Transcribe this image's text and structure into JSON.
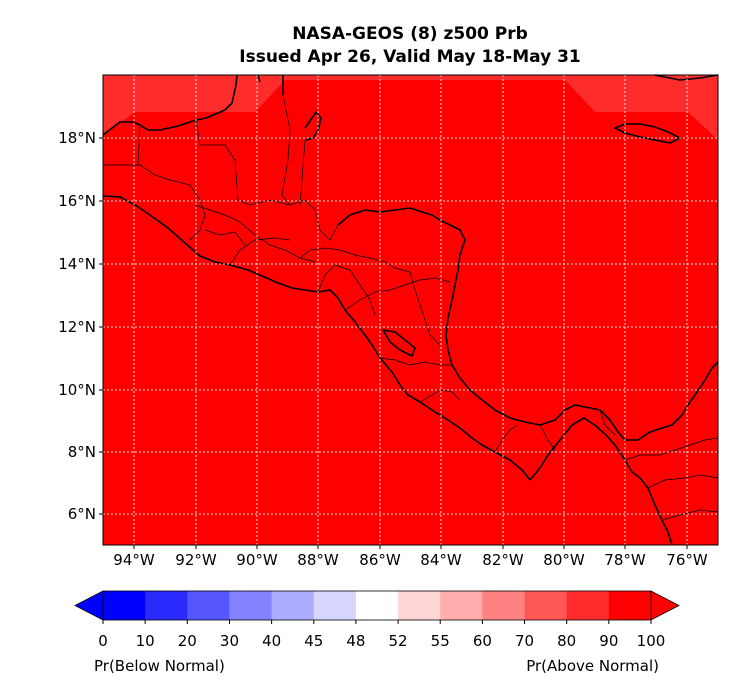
{
  "title": {
    "line1": "NASA-GEOS (8) z500 Prb",
    "line2": "Issued Apr 26, Valid May 18-May 31"
  },
  "map": {
    "fill_color": "#ff0000",
    "edge_fill_color": "#ff2c2c",
    "lat_ticks": [
      "18°N",
      "16°N",
      "14°N",
      "12°N",
      "10°N",
      "8°N",
      "6°N"
    ],
    "lon_ticks": [
      "94°W",
      "92°W",
      "90°W",
      "88°W",
      "86°W",
      "84°W",
      "82°W",
      "80°W",
      "78°W",
      "76°W"
    ],
    "gridlines": true
  },
  "colorbar": {
    "ticks": [
      "0",
      "10",
      "20",
      "30",
      "40",
      "45",
      "48",
      "52",
      "55",
      "60",
      "70",
      "80",
      "90",
      "100"
    ],
    "colors": [
      "#0000ff",
      "#2b2bff",
      "#5656ff",
      "#8282ff",
      "#adadff",
      "#d6d6ff",
      "#ffffff",
      "#ffd6d6",
      "#ffadad",
      "#ff8282",
      "#ff5656",
      "#ff2b2b",
      "#ff0000"
    ],
    "left_label": "Pr(Below Normal)",
    "right_label": "Pr(Above Normal)"
  }
}
